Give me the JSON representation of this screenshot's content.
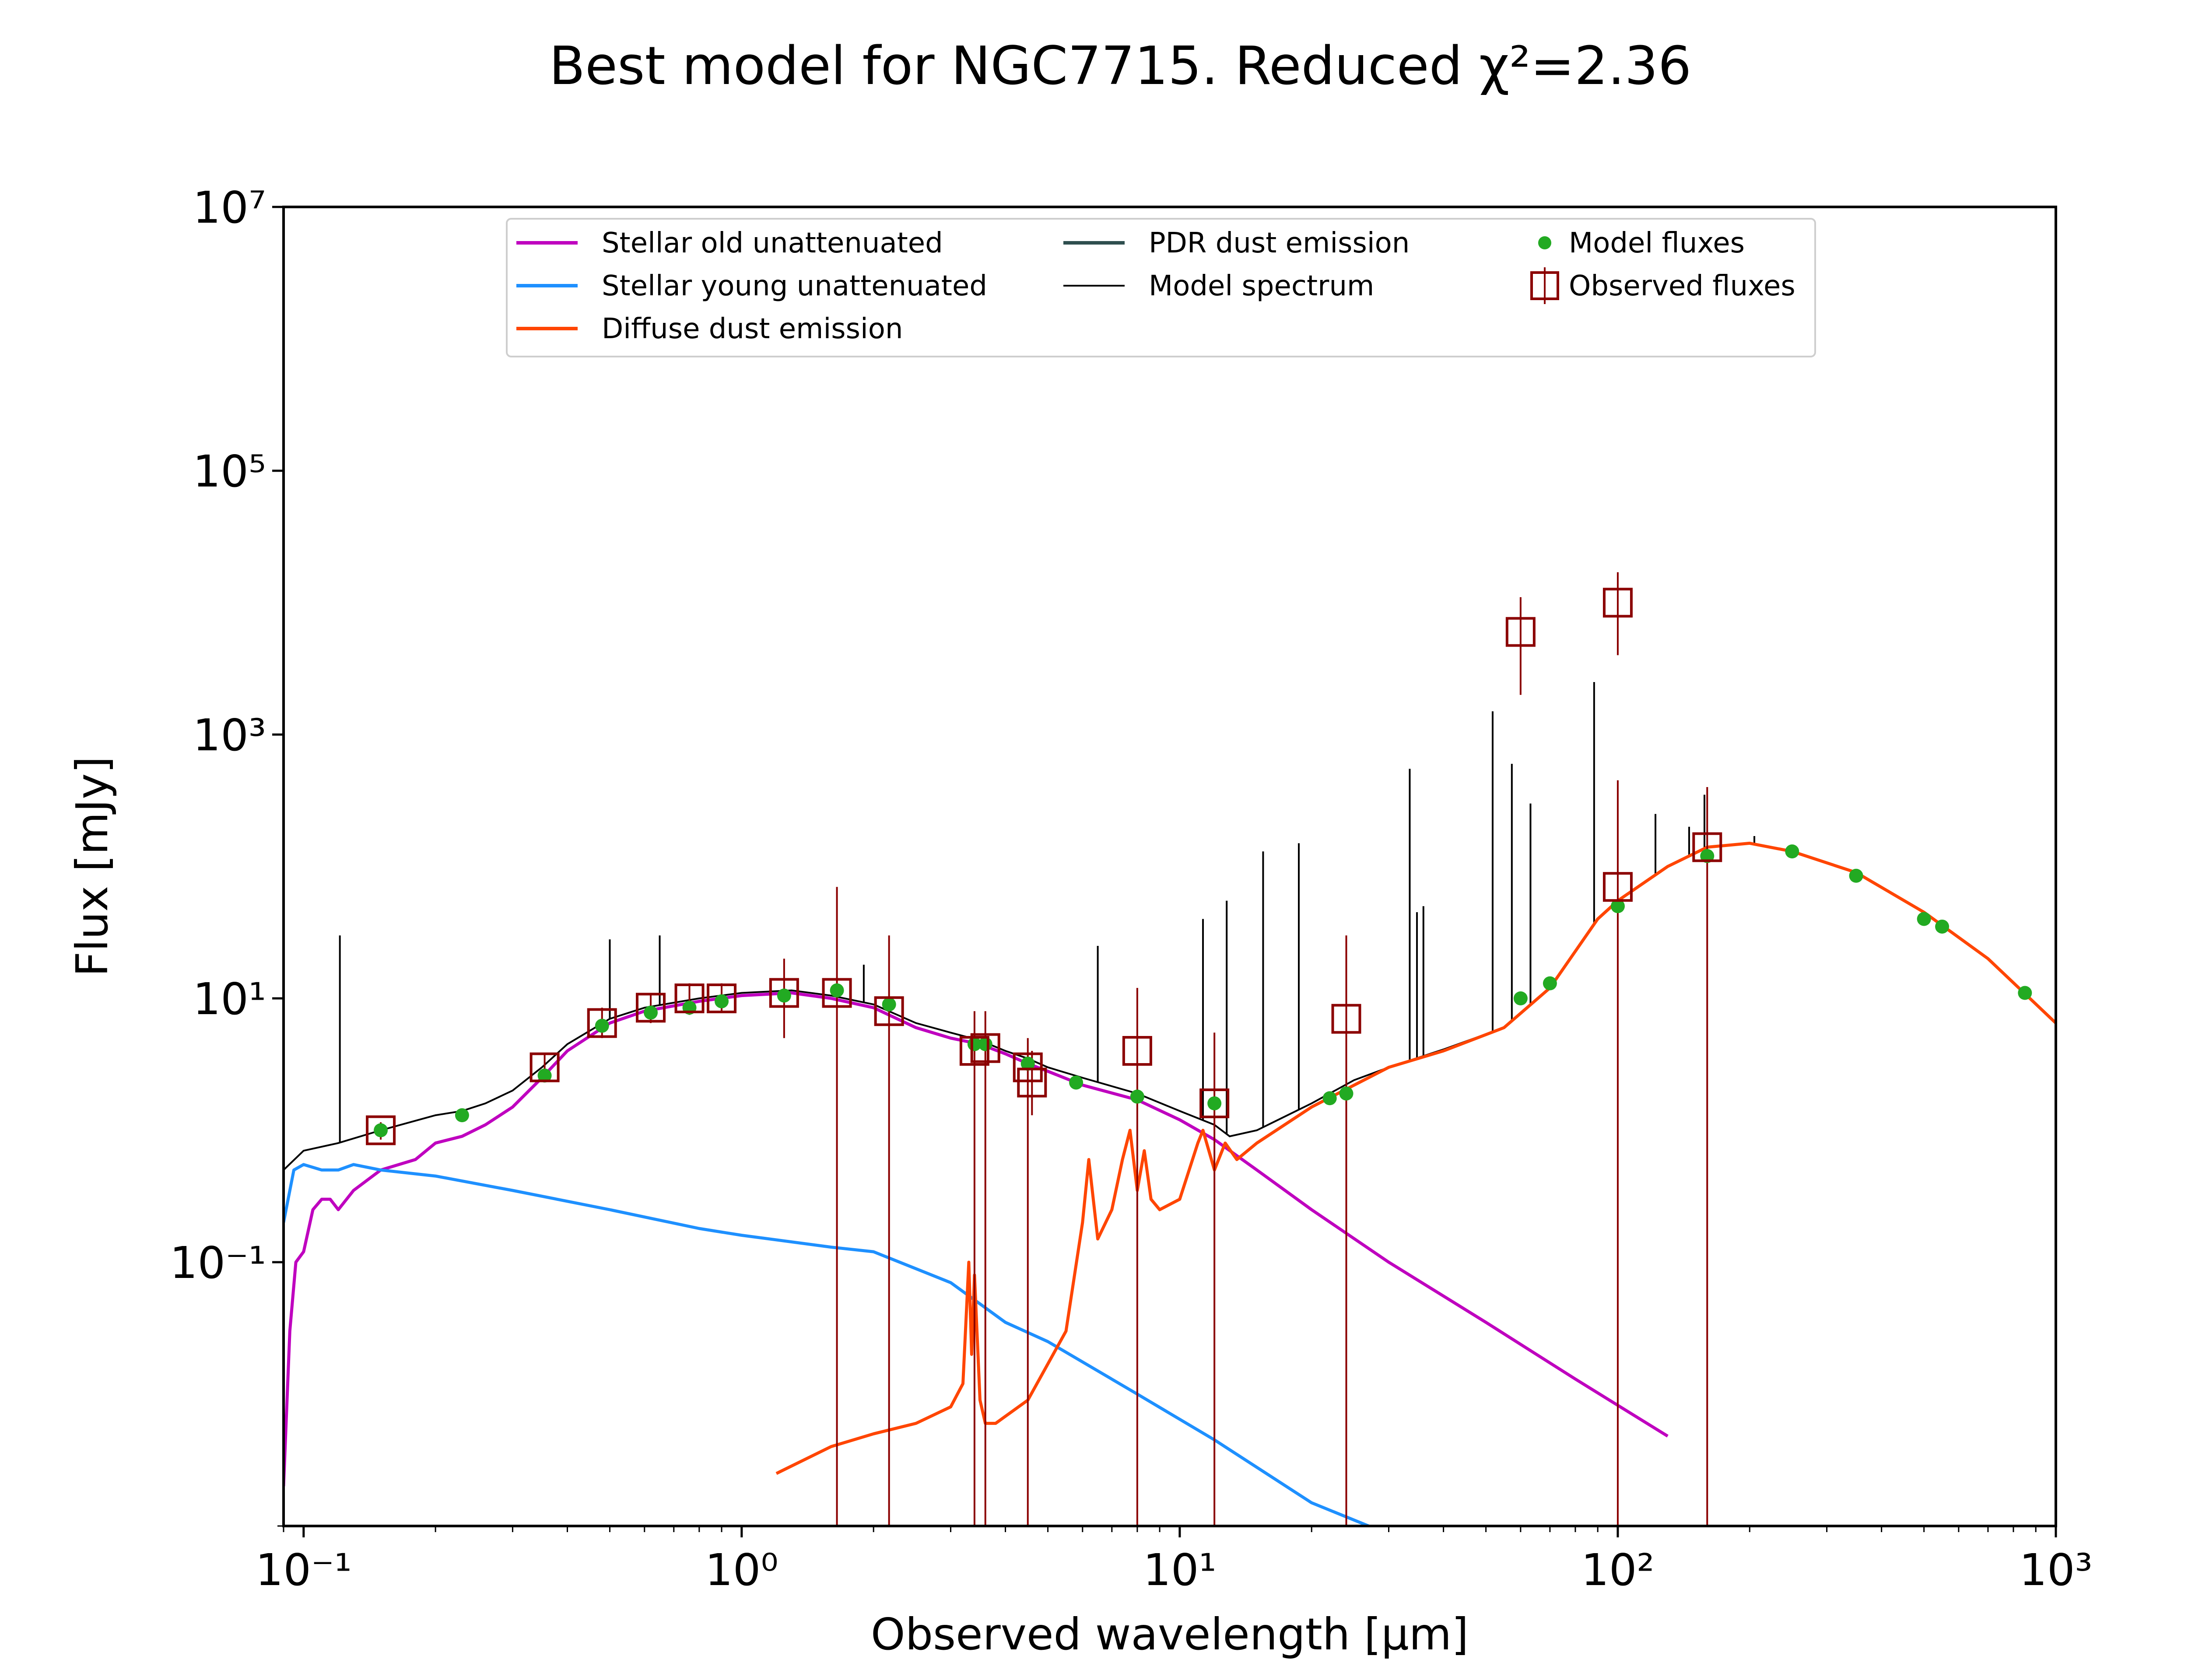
{
  "chart_data": {
    "type": "line",
    "title": "Best model for NGC7715. Reduced χ²=2.36",
    "xlabel": "Observed wavelength [μm]",
    "ylabel": "Flux [mJy]",
    "xscale": "log",
    "yscale": "log",
    "xlim": [
      0.09,
      1000
    ],
    "ylim": [
      0.001,
      10000000
    ],
    "x_ticks": [
      0.1,
      1,
      10,
      100,
      1000
    ],
    "x_tick_labels": [
      "10⁻¹",
      "10⁰",
      "10¹",
      "10²",
      "10³"
    ],
    "y_ticks": [
      0.1,
      10,
      1000,
      100000,
      10000000
    ],
    "y_tick_labels": [
      "10⁻¹",
      "10¹",
      "10³",
      "10⁵",
      "10⁷"
    ],
    "grid": false,
    "legend_position": "top-center",
    "legend": [
      {
        "label": "Stellar old unattenuated",
        "kind": "line",
        "color": "#bf00bf"
      },
      {
        "label": "Stellar young unattenuated",
        "kind": "line",
        "color": "#1e90ff"
      },
      {
        "label": "Diffuse dust emission",
        "kind": "line",
        "color": "#ff4500"
      },
      {
        "label": "PDR dust emission",
        "kind": "line",
        "color": "#2f4f4f"
      },
      {
        "label": "Model spectrum",
        "kind": "thinline",
        "color": "#000000"
      },
      {
        "label": "Model fluxes",
        "kind": "dot",
        "color": "#22aa22"
      },
      {
        "label": "Observed fluxes",
        "kind": "square",
        "color": "#8b0000"
      }
    ],
    "series": [
      {
        "name": "Stellar old unattenuated",
        "color": "#bf00bf",
        "x": [
          0.09,
          0.093,
          0.096,
          0.1,
          0.105,
          0.11,
          0.115,
          0.12,
          0.13,
          0.15,
          0.18,
          0.2,
          0.23,
          0.26,
          0.3,
          0.35,
          0.4,
          0.5,
          0.6,
          0.8,
          1.0,
          1.3,
          1.6,
          2.0,
          2.5,
          3.0,
          3.5,
          4.0,
          4.5,
          5.0,
          6.0,
          8.0,
          10,
          12,
          15,
          20,
          30,
          50,
          80,
          130
        ],
        "y": [
          0.002,
          0.03,
          0.1,
          0.12,
          0.25,
          0.3,
          0.3,
          0.25,
          0.35,
          0.5,
          0.6,
          0.8,
          0.9,
          1.1,
          1.5,
          2.5,
          4.0,
          6.5,
          8.0,
          9.5,
          10.5,
          11.0,
          10.0,
          8.5,
          6.0,
          5.0,
          4.5,
          3.8,
          3.2,
          2.8,
          2.2,
          1.7,
          1.2,
          0.85,
          0.5,
          0.25,
          0.1,
          0.035,
          0.013,
          0.0048
        ]
      },
      {
        "name": "Stellar young unattenuated",
        "color": "#1e90ff",
        "x": [
          0.09,
          0.095,
          0.1,
          0.11,
          0.12,
          0.13,
          0.15,
          0.2,
          0.3,
          0.5,
          0.8,
          1.0,
          1.6,
          2.0,
          3.0,
          4.0,
          5.0,
          8.0,
          12,
          20,
          27
        ],
        "y": [
          0.2,
          0.5,
          0.55,
          0.5,
          0.5,
          0.55,
          0.5,
          0.45,
          0.35,
          0.25,
          0.18,
          0.16,
          0.13,
          0.12,
          0.07,
          0.035,
          0.025,
          0.01,
          0.0045,
          0.0015,
          0.001
        ]
      },
      {
        "name": "Diffuse dust emission",
        "color": "#ff4500",
        "x": [
          1.2,
          1.6,
          2.0,
          2.5,
          3.0,
          3.2,
          3.3,
          3.35,
          3.4,
          3.5,
          3.6,
          3.8,
          4.5,
          5.5,
          6.0,
          6.2,
          6.5,
          7.0,
          7.4,
          7.7,
          8.0,
          8.3,
          8.6,
          9.0,
          10,
          11,
          11.3,
          12,
          12.7,
          13.5,
          15,
          20,
          30,
          40,
          55,
          70,
          90,
          100,
          130,
          160,
          200,
          250,
          350,
          500,
          700,
          1000
        ],
        "y": [
          0.0025,
          0.004,
          0.005,
          0.006,
          0.008,
          0.012,
          0.1,
          0.02,
          0.08,
          0.009,
          0.006,
          0.006,
          0.009,
          0.03,
          0.2,
          0.6,
          0.15,
          0.25,
          0.6,
          1.0,
          0.35,
          0.7,
          0.3,
          0.25,
          0.3,
          0.8,
          1.0,
          0.5,
          0.8,
          0.6,
          0.8,
          1.5,
          3.0,
          4.0,
          6.0,
          12,
          40,
          55,
          100,
          140,
          150,
          130,
          90,
          45,
          20,
          6.5
        ]
      },
      {
        "name": "Model spectrum",
        "color": "#000000",
        "x": [
          0.09,
          0.1,
          0.12,
          0.15,
          0.2,
          0.23,
          0.26,
          0.3,
          0.35,
          0.4,
          0.5,
          0.6,
          0.8,
          1.0,
          1.3,
          1.6,
          2.0,
          2.5,
          3.0,
          3.5,
          4.0,
          4.5,
          5.0,
          6.0,
          8.0,
          10,
          12,
          13,
          15,
          20,
          25,
          30,
          40,
          55,
          70,
          90,
          100,
          130,
          160,
          200,
          250
        ],
        "y": [
          0.5,
          0.7,
          0.8,
          1.0,
          1.3,
          1.4,
          1.6,
          2.0,
          3.0,
          4.5,
          7.0,
          8.5,
          10,
          11,
          11.5,
          10.5,
          9.0,
          6.5,
          5.5,
          4.8,
          4.0,
          3.5,
          3.0,
          2.5,
          1.9,
          1.4,
          1.1,
          0.9,
          1.0,
          1.6,
          2.4,
          3.0,
          4.1,
          6.0,
          12,
          40,
          55,
          100,
          140,
          150,
          130
        ],
        "lines": [
          {
            "x": 0.121,
            "y": 30
          },
          {
            "x": 0.5,
            "y": 28
          },
          {
            "x": 0.65,
            "y": 30
          },
          {
            "x": 1.9,
            "y": 18
          },
          {
            "x": 6.5,
            "y": 25
          },
          {
            "x": 11.3,
            "y": 40
          },
          {
            "x": 12.8,
            "y": 55
          },
          {
            "x": 15.5,
            "y": 130
          },
          {
            "x": 18.7,
            "y": 150
          },
          {
            "x": 33.5,
            "y": 550
          },
          {
            "x": 34.8,
            "y": 45
          },
          {
            "x": 36.0,
            "y": 50
          },
          {
            "x": 51.8,
            "y": 1500
          },
          {
            "x": 57.3,
            "y": 600
          },
          {
            "x": 63.2,
            "y": 300
          },
          {
            "x": 88.3,
            "y": 2500
          },
          {
            "x": 121.9,
            "y": 250
          },
          {
            "x": 145.5,
            "y": 200
          },
          {
            "x": 157.7,
            "y": 350
          },
          {
            "x": 205,
            "y": 170
          }
        ]
      },
      {
        "name": "Model fluxes",
        "color": "#22aa22",
        "x": [
          0.15,
          0.23,
          0.355,
          0.48,
          0.62,
          0.76,
          0.9,
          1.25,
          1.65,
          2.17,
          3.4,
          3.6,
          4.5,
          5.8,
          8.0,
          12,
          22,
          24,
          60,
          70,
          100,
          160,
          250,
          350,
          500,
          550,
          850
        ],
        "y": [
          1.0,
          1.3,
          2.6,
          6.2,
          7.8,
          8.5,
          9.5,
          10.5,
          11.5,
          9.0,
          4.5,
          4.5,
          3.2,
          2.3,
          1.8,
          1.6,
          1.75,
          1.9,
          10,
          13,
          50,
          120,
          130,
          85,
          40,
          35,
          11
        ]
      },
      {
        "name": "Observed fluxes",
        "color": "#8b0000",
        "x": [
          0.15,
          0.355,
          0.48,
          0.62,
          0.76,
          0.9,
          1.25,
          1.65,
          2.17,
          3.4,
          3.6,
          4.5,
          4.6,
          8.0,
          12,
          24,
          60,
          100,
          100,
          160
        ],
        "y": [
          1.0,
          3.0,
          6.5,
          8.5,
          10.0,
          10.0,
          11.0,
          11.0,
          8.0,
          4.0,
          4.2,
          3.0,
          2.3,
          4.0,
          1.6,
          7.0,
          6000,
          10000,
          70,
          140
        ],
        "err_low": [
          0.85,
          2.4,
          5.0,
          6.5,
          7.5,
          7.8,
          5.0,
          0.001,
          0.001,
          0.001,
          0.001,
          0.001,
          1.3,
          0.001,
          0.001,
          0.001,
          2000,
          4000,
          0.001,
          0.001
        ],
        "err_high": [
          1.15,
          3.8,
          8.5,
          11.0,
          13.0,
          13.0,
          20.0,
          70,
          30,
          8.0,
          8.0,
          5.0,
          4.0,
          12,
          5.5,
          30,
          11000,
          17000,
          450,
          400
        ]
      }
    ]
  }
}
